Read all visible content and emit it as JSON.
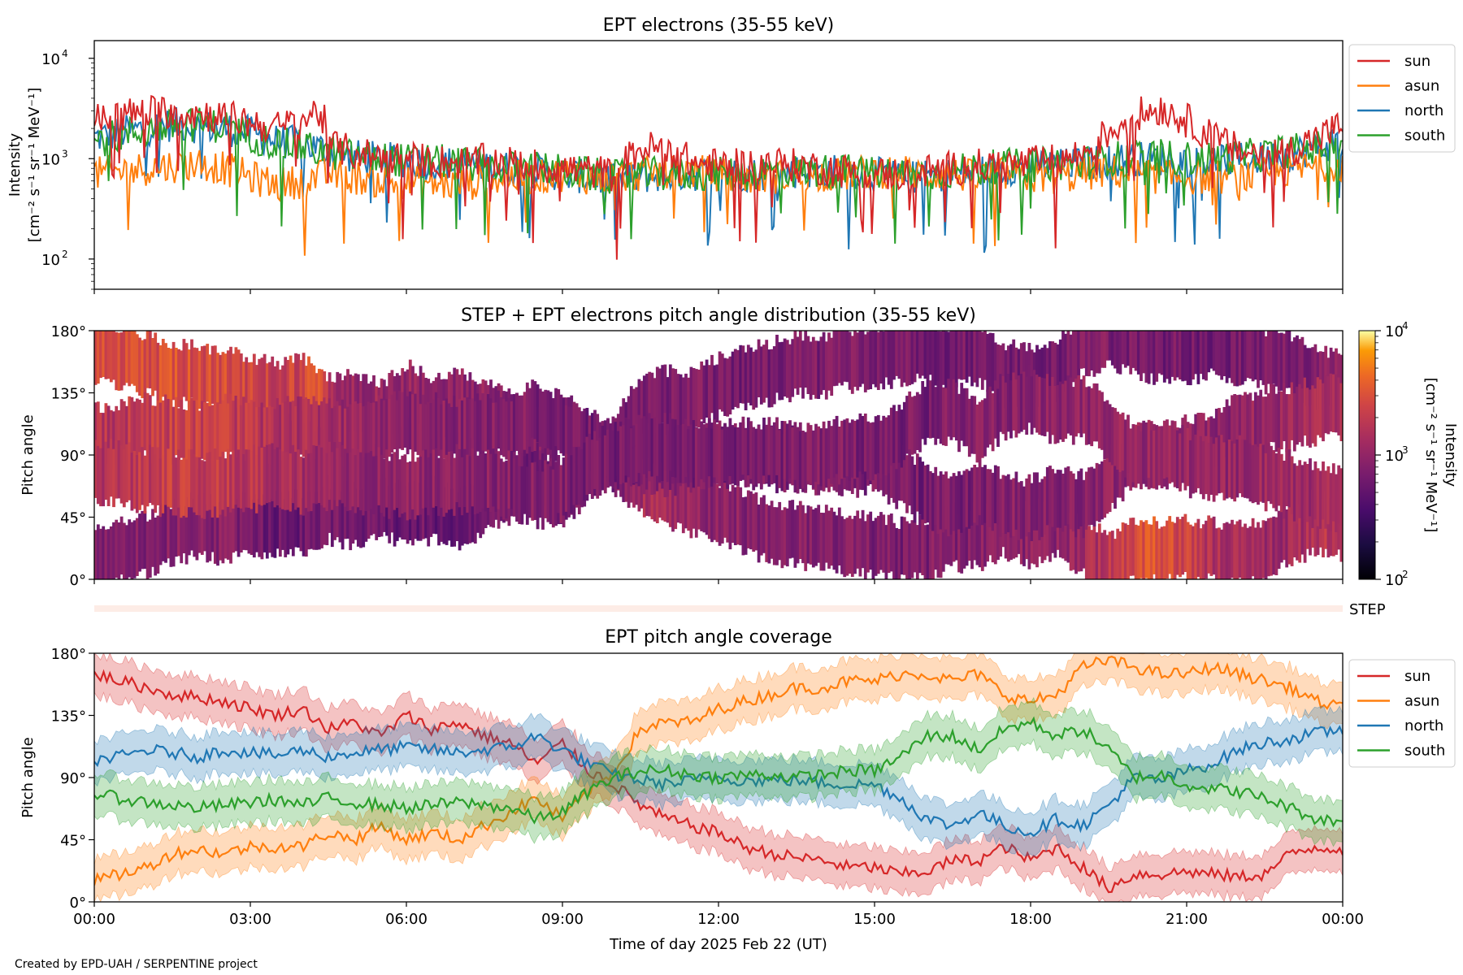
{
  "chart_data": [
    {
      "type": "line",
      "title": "EPT electrons (35-55 keV)",
      "ylabel_line1": "Intensity",
      "ylabel_line2": "[cm⁻² s⁻¹ sr⁻¹ MeV⁻¹]",
      "yscale": "log",
      "ylim": [
        50,
        15000
      ],
      "yticks": [
        {
          "value": 100,
          "base": "10",
          "exp": "2"
        },
        {
          "value": 1000,
          "base": "10",
          "exp": "3"
        },
        {
          "value": 10000,
          "base": "10",
          "exp": "4"
        }
      ],
      "xlim_hours": [
        0,
        24
      ],
      "legend_position": "right, outside top",
      "series": [
        {
          "name": "sun",
          "color": "#d62728",
          "hours": [
            0,
            0.5,
            1,
            1.5,
            2,
            2.5,
            3,
            3.5,
            4,
            4.3,
            4.6,
            5,
            5.5,
            6,
            6.5,
            7,
            7.5,
            8,
            8.5,
            9,
            9.5,
            10,
            10.5,
            11,
            11.5,
            12,
            12.5,
            13,
            13.5,
            14,
            14.5,
            15,
            15.5,
            16,
            16.5,
            17,
            17.5,
            18,
            18.5,
            19,
            19.5,
            20,
            20.5,
            21,
            21.5,
            22,
            22.5,
            23,
            23.5,
            24
          ],
          "values": [
            2400,
            2700,
            2900,
            3000,
            2800,
            2600,
            2300,
            2000,
            2400,
            3000,
            1300,
            1150,
            1050,
            1000,
            950,
            900,
            950,
            900,
            850,
            800,
            750,
            700,
            1250,
            1300,
            900,
            850,
            850,
            900,
            850,
            800,
            750,
            700,
            700,
            750,
            800,
            850,
            850,
            900,
            950,
            1100,
            1800,
            2700,
            3200,
            2400,
            1600,
            1200,
            1100,
            1200,
            1600,
            2100
          ]
        },
        {
          "name": "asun",
          "color": "#ff7f0e",
          "hours": [
            0,
            0.5,
            1,
            1.5,
            2,
            2.5,
            3,
            3.5,
            4,
            4.5,
            5,
            5.5,
            6,
            6.5,
            7,
            7.5,
            8,
            8.5,
            9,
            9.5,
            10,
            10.5,
            11,
            11.5,
            12,
            12.5,
            13,
            13.5,
            14,
            14.5,
            15,
            15.5,
            16,
            16.5,
            17,
            17.5,
            18,
            18.5,
            19,
            19.5,
            20,
            20.5,
            21,
            21.5,
            22,
            22.5,
            23,
            23.5,
            24
          ],
          "values": [
            700,
            750,
            800,
            850,
            900,
            800,
            650,
            550,
            600,
            700,
            650,
            600,
            580,
            560,
            550,
            600,
            650,
            650,
            700,
            650,
            650,
            700,
            750,
            750,
            700,
            650,
            650,
            700,
            700,
            700,
            750,
            750,
            700,
            700,
            650,
            700,
            650,
            650,
            700,
            750,
            700,
            650,
            650,
            650,
            650,
            700,
            750,
            850,
            900
          ]
        },
        {
          "name": "north",
          "color": "#1f77b4",
          "hours": [
            0,
            0.5,
            1,
            1.5,
            2,
            2.5,
            3,
            3.5,
            4,
            4.5,
            5,
            5.5,
            6,
            6.5,
            7,
            7.5,
            8,
            8.5,
            9,
            9.5,
            10,
            10.5,
            11,
            11.5,
            12,
            12.5,
            13,
            13.5,
            14,
            14.5,
            15,
            15.5,
            16,
            16.5,
            17,
            17.5,
            18,
            18.5,
            19,
            19.5,
            20,
            20.5,
            21,
            21.5,
            22,
            22.5,
            23,
            23.5,
            24
          ],
          "values": [
            1600,
            1800,
            2000,
            2200,
            2100,
            2000,
            1800,
            1500,
            1400,
            1200,
            1050,
            1000,
            950,
            900,
            900,
            850,
            800,
            750,
            700,
            650,
            600,
            650,
            700,
            700,
            700,
            700,
            700,
            750,
            750,
            750,
            700,
            650,
            650,
            700,
            750,
            800,
            850,
            850,
            900,
            950,
            1000,
            1000,
            950,
            950,
            1000,
            1000,
            1100,
            1300,
            1500
          ]
        },
        {
          "name": "south",
          "color": "#2ca02c",
          "hours": [
            0,
            0.5,
            1,
            1.5,
            2,
            2.5,
            3,
            3.5,
            4,
            4.5,
            5,
            5.5,
            6,
            6.5,
            7,
            7.5,
            8,
            8.5,
            9,
            9.5,
            10,
            10.5,
            11,
            11.5,
            12,
            12.5,
            13,
            13.5,
            14,
            14.5,
            15,
            15.5,
            16,
            16.5,
            17,
            17.5,
            18,
            18.5,
            19,
            19.5,
            20,
            20.5,
            21,
            21.5,
            22,
            22.5,
            23,
            23.5,
            24
          ],
          "values": [
            1500,
            1700,
            1900,
            2100,
            2200,
            2100,
            1700,
            1400,
            1300,
            1150,
            1050,
            1000,
            950,
            950,
            900,
            850,
            800,
            800,
            750,
            700,
            650,
            700,
            700,
            700,
            700,
            700,
            750,
            750,
            750,
            750,
            700,
            700,
            700,
            750,
            800,
            850,
            850,
            900,
            900,
            1000,
            1050,
            1050,
            1000,
            1000,
            1050,
            1100,
            1200,
            1300,
            1500
          ]
        }
      ]
    },
    {
      "type": "heatmap",
      "title": "STEP + EPT electrons pitch angle distribution (35-55 keV)",
      "ylabel": "Pitch angle",
      "ylim": [
        0,
        180
      ],
      "yticks": [
        "0°",
        "45°",
        "90°",
        "135°",
        "180°"
      ],
      "colorbar_label_line1": "Intensity",
      "colorbar_label_line2": "[cm⁻² s⁻¹ sr⁻¹ MeV⁻¹]",
      "colorbar_scale": "log",
      "colorbar_range": [
        100,
        10000
      ],
      "colorbar_ticks": [
        {
          "value": 100,
          "base": "10",
          "exp": "2"
        },
        {
          "value": 1000,
          "base": "10",
          "exp": "3"
        },
        {
          "value": 10000,
          "base": "10",
          "exp": "4"
        }
      ],
      "colormap": "inferno",
      "step_label": "STEP"
    },
    {
      "type": "line",
      "title": "EPT pitch angle coverage",
      "ylabel": "Pitch angle",
      "ylim": [
        0,
        180
      ],
      "yticks": [
        "0°",
        "45°",
        "90°",
        "135°",
        "180°"
      ],
      "xlabel": "Time of day 2025 Feb 22 (UT)",
      "xticks": [
        "00:00",
        "03:00",
        "06:00",
        "09:00",
        "12:00",
        "15:00",
        "18:00",
        "21:00",
        "00:00"
      ],
      "legend_position": "right, outside top",
      "band_halfwidth_deg": 15,
      "series": [
        {
          "name": "sun",
          "color": "#d62728",
          "hours": [
            0,
            0.5,
            1,
            1.5,
            2,
            2.5,
            3,
            3.5,
            4,
            4.5,
            5,
            5.5,
            6,
            6.5,
            7,
            7.5,
            8,
            8.5,
            9,
            9.5,
            10,
            10.5,
            11,
            11.5,
            12,
            12.5,
            13,
            13.5,
            14,
            14.5,
            15,
            15.5,
            16,
            16.5,
            17,
            17.5,
            18,
            18.5,
            19,
            19.5,
            20,
            20.5,
            21,
            21.5,
            22,
            22.5,
            23,
            23.5,
            24
          ],
          "values": [
            165,
            160,
            155,
            150,
            148,
            145,
            140,
            135,
            140,
            125,
            130,
            120,
            135,
            125,
            130,
            120,
            115,
            100,
            115,
            95,
            85,
            70,
            60,
            55,
            50,
            40,
            35,
            32,
            30,
            25,
            25,
            20,
            22,
            30,
            30,
            40,
            30,
            40,
            25,
            10,
            20,
            20,
            22,
            20,
            18,
            20,
            35,
            40,
            38
          ]
        },
        {
          "name": "asun",
          "color": "#ff7f0e",
          "hours": [
            0,
            0.5,
            1,
            1.5,
            2,
            2.5,
            3,
            3.5,
            4,
            4.5,
            5,
            5.5,
            6,
            6.5,
            7,
            7.5,
            8,
            8.5,
            9,
            9.5,
            10,
            10.5,
            11,
            11.5,
            12,
            12.5,
            13,
            13.5,
            14,
            14.5,
            15,
            15.5,
            16,
            16.5,
            17,
            17.5,
            18,
            18.5,
            19,
            19.5,
            20,
            20.5,
            21,
            21.5,
            22,
            22.5,
            23,
            23.5,
            24
          ],
          "values": [
            15,
            20,
            25,
            35,
            38,
            35,
            40,
            40,
            40,
            50,
            45,
            55,
            45,
            50,
            45,
            55,
            65,
            75,
            60,
            80,
            95,
            125,
            130,
            130,
            140,
            145,
            150,
            155,
            155,
            160,
            160,
            165,
            165,
            160,
            165,
            150,
            145,
            150,
            170,
            175,
            170,
            165,
            165,
            170,
            165,
            160,
            155,
            145,
            140
          ]
        },
        {
          "name": "north",
          "color": "#1f77b4",
          "hours": [
            0,
            0.5,
            1,
            1.5,
            2,
            2.5,
            3,
            3.5,
            4,
            4.5,
            5,
            5.5,
            6,
            6.5,
            7,
            7.5,
            8,
            8.5,
            9,
            9.5,
            10,
            10.5,
            11,
            11.5,
            12,
            12.5,
            13,
            13.5,
            14,
            14.5,
            15,
            15.5,
            16,
            16.5,
            17,
            17.5,
            18,
            18.5,
            19,
            19.5,
            20,
            20.5,
            21,
            21.5,
            22,
            22.5,
            23,
            23.5,
            24
          ],
          "values": [
            103,
            105,
            110,
            108,
            105,
            110,
            108,
            106,
            110,
            105,
            108,
            110,
            112,
            110,
            108,
            110,
            112,
            120,
            110,
            100,
            92,
            88,
            85,
            88,
            90,
            88,
            88,
            88,
            86,
            85,
            85,
            75,
            60,
            55,
            65,
            55,
            50,
            60,
            55,
            70,
            90,
            88,
            95,
            100,
            110,
            115,
            118,
            122,
            125
          ]
        },
        {
          "name": "south",
          "color": "#2ca02c",
          "hours": [
            0,
            0.5,
            1,
            1.5,
            2,
            2.5,
            3,
            3.5,
            4,
            4.5,
            5,
            5.5,
            6,
            6.5,
            7,
            7.5,
            8,
            8.5,
            9,
            9.5,
            10,
            10.5,
            11,
            11.5,
            12,
            12.5,
            13,
            13.5,
            14,
            14.5,
            15,
            15.5,
            16,
            16.5,
            17,
            17.5,
            18,
            18.5,
            19,
            19.5,
            20,
            20.5,
            21,
            21.5,
            22,
            22.5,
            23,
            23.5,
            24
          ],
          "values": [
            78,
            75,
            72,
            70,
            68,
            70,
            72,
            74,
            70,
            75,
            72,
            70,
            68,
            70,
            72,
            70,
            68,
            60,
            65,
            80,
            90,
            95,
            95,
            92,
            90,
            92,
            92,
            90,
            92,
            95,
            95,
            105,
            120,
            120,
            110,
            125,
            130,
            120,
            125,
            110,
            90,
            92,
            85,
            82,
            80,
            75,
            68,
            60,
            58
          ]
        }
      ]
    }
  ],
  "footer": {
    "credit": "Created by EPD-UAH / SERPENTINE project"
  }
}
